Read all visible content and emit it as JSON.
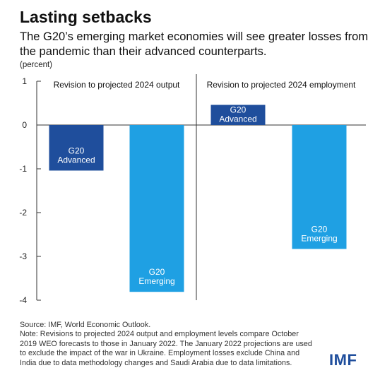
{
  "title": "Lasting setbacks",
  "subtitle": "The G20’s emerging market economies will see greater losses from the pandemic than their advanced counterparts.",
  "unit": "(percent)",
  "source": "Source: IMF, World Economic Outlook.",
  "note": "Note: Revisions to projected 2024 output and employment levels compare October 2019 WEO forecasts to those in January 2022. The January 2022 projections are used to exclude the impact of the war in Ukraine. Employment losses exclude China and India due to data methodology changes and Saudi Arabia due to data limitations.",
  "logo": "IMF",
  "colors": {
    "advanced": "#1f4e9c",
    "emerging": "#1fa0e3"
  },
  "chart_data": [
    {
      "type": "bar",
      "title": "Revision to projected 2024 output",
      "categories": [
        "G20 Advanced",
        "G20 Emerging"
      ],
      "values": [
        -1.04,
        -3.81
      ],
      "ylim": [
        -4,
        1
      ],
      "yticks": [
        1,
        0,
        -1,
        -2,
        -3,
        -4
      ],
      "grid": false
    },
    {
      "type": "bar",
      "title": "Revision to projected 2024 employment",
      "categories": [
        "G20 Advanced",
        "G20 Emerging"
      ],
      "values": [
        0.46,
        -2.83
      ],
      "ylim": [
        -4,
        1
      ],
      "yticks": [
        1,
        0,
        -1,
        -2,
        -3,
        -4
      ],
      "grid": false
    }
  ]
}
